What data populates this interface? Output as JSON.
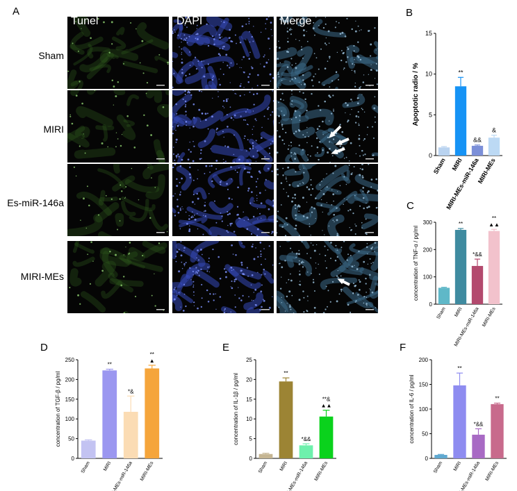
{
  "panels": {
    "a": {
      "letter": "A"
    },
    "b": {
      "letter": "B"
    },
    "c": {
      "letter": "C"
    },
    "d": {
      "letter": "D"
    },
    "e": {
      "letter": "E"
    },
    "f": {
      "letter": "F"
    }
  },
  "micrographs": {
    "columns": [
      "Tunel",
      "DAPI",
      "Merge"
    ],
    "rows": [
      "Sham",
      "MIRI",
      "Es-miR-146a",
      "MIRI-MEs"
    ],
    "colors": {
      "tunel": "#2f5a1e",
      "dapi": "#3548b8",
      "merge": "#3c6a88",
      "background": "#050505"
    }
  },
  "chart_data": [
    {
      "id": "B",
      "type": "bar",
      "categories": [
        "Sham",
        "MIRI",
        "MIRI-MEs-miR-146a",
        "MIRI-MEs"
      ],
      "values": [
        1.0,
        8.5,
        1.2,
        2.2
      ],
      "errors": [
        0.1,
        1.1,
        0.1,
        0.3
      ],
      "annotations": [
        "",
        "**",
        "&&",
        "&"
      ],
      "colors": [
        "#b9d3f0",
        "#1693f5",
        "#7b8fd8",
        "#bcd9f4"
      ],
      "ylabel": "Apoptotic radio / %",
      "ylim": [
        0,
        15
      ],
      "yticks": [
        0,
        5,
        10,
        15
      ]
    },
    {
      "id": "C",
      "type": "bar",
      "categories": [
        "Sham",
        "MIRI",
        "MIRI-MEs-miR-146a",
        "MIRI-MEs"
      ],
      "values": [
        60,
        272,
        140,
        268
      ],
      "errors": [
        2,
        5,
        25,
        6
      ],
      "annotations": [
        "",
        "**",
        "*&&",
        "**\n▲▲"
      ],
      "colors": [
        "#5fb8c8",
        "#3f8ba0",
        "#b34a6e",
        "#f2c2cc"
      ],
      "ylabel": "concentration of TNF-α / pg/ml",
      "ylim": [
        0,
        300
      ],
      "yticks": [
        0,
        100,
        200,
        300
      ]
    },
    {
      "id": "D",
      "type": "bar",
      "categories": [
        "Sham",
        "MIRI",
        "MIRI-MEs-miR-146a",
        "MIRI-MEs"
      ],
      "values": [
        45,
        223,
        118,
        228
      ],
      "errors": [
        2,
        3,
        40,
        8
      ],
      "annotations": [
        "",
        "**",
        "*&",
        "**\n▲"
      ],
      "colors": [
        "#c3c3f2",
        "#9b97f0",
        "#fbdcb4",
        "#f5a53b"
      ],
      "ylabel": "concentration of TGF-β / pg/ml",
      "ylim": [
        0,
        250
      ],
      "yticks": [
        0,
        50,
        100,
        150,
        200,
        250
      ]
    },
    {
      "id": "E",
      "type": "bar",
      "categories": [
        "Sham",
        "MIRI",
        "MIRI-MEs-miR-146a",
        "MIRI-MEs"
      ],
      "values": [
        1.1,
        19.5,
        3.3,
        10.6
      ],
      "errors": [
        0.2,
        0.9,
        0.4,
        1.6
      ],
      "annotations": [
        "",
        "**",
        "*&&",
        "**&\n▲▲"
      ],
      "colors": [
        "#c5b592",
        "#9c8434",
        "#6ef0ac",
        "#0ad21c"
      ],
      "ylabel": "concentration of IL-1β / pg/ml",
      "ylim": [
        0,
        25
      ],
      "yticks": [
        0,
        5,
        10,
        15,
        20,
        25
      ]
    },
    {
      "id": "F",
      "type": "bar",
      "categories": [
        "Sham",
        "MIRI",
        "MIRI-MEs-miR-146a",
        "MIRI-MEs"
      ],
      "values": [
        7,
        148,
        48,
        110
      ],
      "errors": [
        1,
        25,
        12,
        2
      ],
      "annotations": [
        "",
        "**",
        "*&&",
        "**"
      ],
      "colors": [
        "#5fa8d0",
        "#8e8cf0",
        "#a86ac4",
        "#c86a8c"
      ],
      "ylabel": "concentration of IL-6 / pg/ml",
      "ylim": [
        0,
        200
      ],
      "yticks": [
        0,
        50,
        100,
        150,
        200
      ]
    }
  ]
}
